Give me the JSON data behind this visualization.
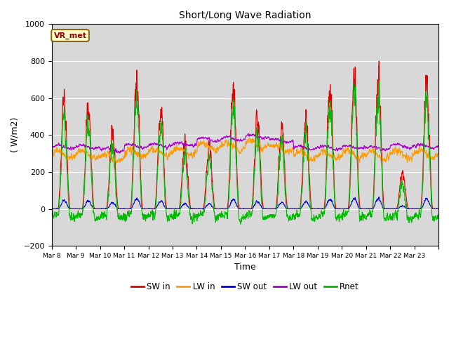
{
  "title": "Short/Long Wave Radiation",
  "ylabel": "( W/m2)",
  "xlabel": "Time",
  "ylim": [
    -200,
    1000
  ],
  "annotation": "VR_met",
  "plot_bg": "#d8d8d8",
  "fig_bg": "#ffffff",
  "legend": [
    "SW in",
    "LW in",
    "SW out",
    "LW out",
    "Rnet"
  ],
  "legend_colors": [
    "#dd0000",
    "#ff9900",
    "#0000dd",
    "#aa00cc",
    "#00bb00"
  ],
  "xtick_labels": [
    "Mar 8",
    "Mar 9",
    "Mar 10",
    "Mar 11",
    "Mar 12",
    "Mar 13",
    "Mar 14",
    "Mar 15",
    "Mar 16",
    "Mar 17",
    "Mar 18",
    "Mar 19",
    "Mar 20",
    "Mar 21",
    "Mar 22",
    "Mar 23"
  ],
  "n_days": 16,
  "ppd": 144,
  "grid_color": "#ffffff",
  "yticks": [
    -200,
    0,
    200,
    400,
    600,
    800,
    1000
  ]
}
